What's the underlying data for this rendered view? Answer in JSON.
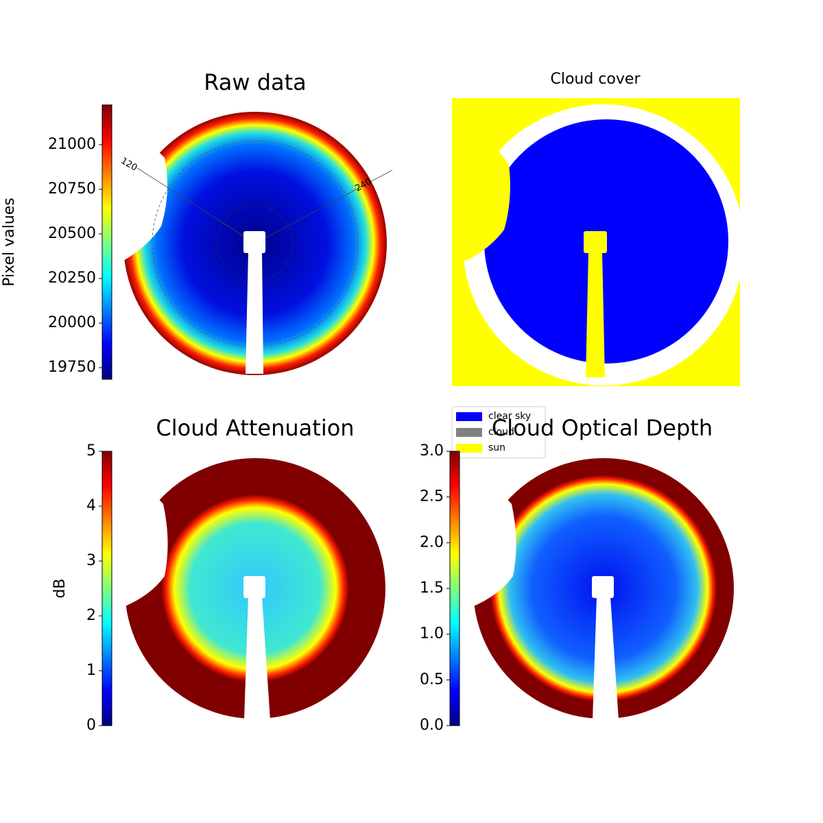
{
  "chart_data": [
    {
      "type": "image",
      "title": "Raw data",
      "colorbar_label": "Pixel values",
      "colormap": "jet",
      "clim": [
        19685,
        21223
      ],
      "cticks": [
        19750,
        20000,
        20250,
        20500,
        20750,
        21000
      ],
      "annotations": [
        "120",
        "240"
      ]
    },
    {
      "type": "image",
      "title": "Cloud cover",
      "legend": [
        {
          "name": "clear sky",
          "color": "#0000ff"
        },
        {
          "name": "cloud",
          "color": "#808080"
        },
        {
          "name": "sun",
          "color": "#ffff00"
        }
      ]
    },
    {
      "type": "image",
      "title": "Cloud Attenuation",
      "colorbar_label": "dB",
      "colormap": "jet",
      "clim": [
        0,
        5
      ],
      "cticks": [
        0,
        1,
        2,
        3,
        4,
        5
      ]
    },
    {
      "type": "image",
      "title": "Cloud Optical Depth",
      "colormap": "jet",
      "clim": [
        0,
        3
      ],
      "cticks": [
        {
          "value": 0,
          "label": "0.0"
        },
        0.5,
        {
          "value": 1,
          "label": "1.0"
        },
        1.5,
        {
          "value": 2,
          "label": "2.0"
        },
        2.5,
        {
          "value": 3,
          "label": "3.0"
        }
      ]
    }
  ]
}
